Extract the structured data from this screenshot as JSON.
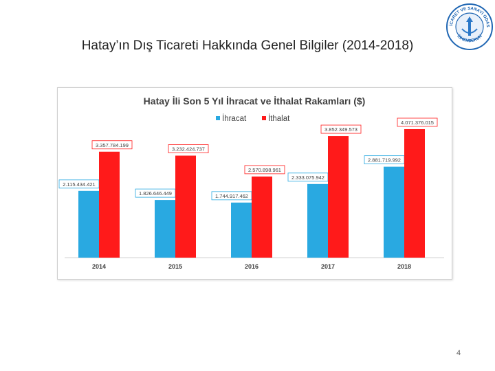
{
  "slide": {
    "title": "Hatay’ın Dış Ticareti Hakkında Genel Bilgiler (2014-2018)",
    "page_number": "4"
  },
  "logo": {
    "ring_text_top": "TİCARET VE SANAYİ ODASI",
    "ring_text_bottom": "İSKENDERUN",
    "colors": {
      "ring": "#1f66b3",
      "fill": "#2b78c8"
    }
  },
  "chart_data": {
    "type": "bar",
    "title": "Hatay İli Son 5 Yıl İhracat ve İthalat Rakamları ($)",
    "categories": [
      "2014",
      "2015",
      "2016",
      "2017",
      "2018"
    ],
    "series": [
      {
        "name": "İhracat",
        "color": "#29a9e1",
        "values": [
          2115434421,
          1826646449,
          1744917462,
          2333075942,
          2881719992
        ],
        "labels": [
          "2.115.434.421",
          "1.826.646.449",
          "1.744.917.462",
          "2.333.075.942",
          "2.881.719.992"
        ]
      },
      {
        "name": "İthalat",
        "color": "#ff1a1a",
        "values": [
          3357784199,
          3232424737,
          2570898961,
          3852349573,
          4071376015
        ],
        "labels": [
          "3.357.784.199",
          "3.232.424.737",
          "2.570.898.961",
          "3.852.349.573",
          "4.071.376.015"
        ]
      }
    ],
    "ylim": [
      0,
      4500000000
    ],
    "legend": "top-center",
    "grid": false
  }
}
